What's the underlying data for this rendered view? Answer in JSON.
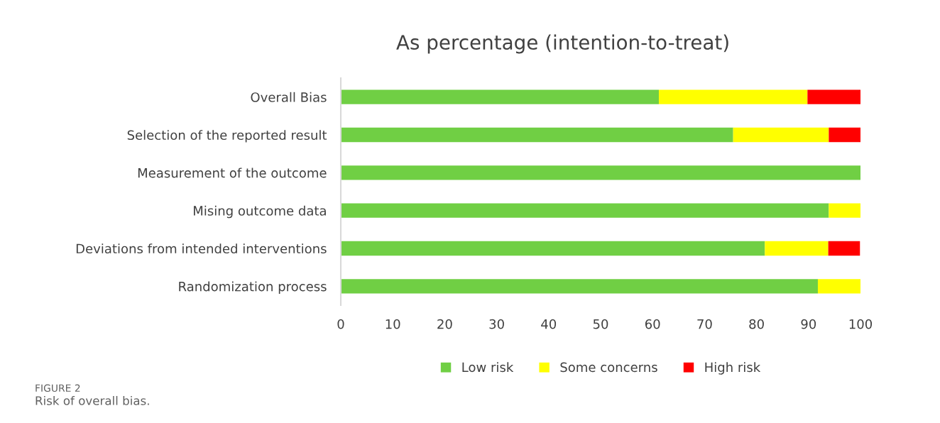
{
  "chart_data": {
    "type": "bar",
    "orientation": "horizontal",
    "stacked": true,
    "title": "As percentage (intention-to-treat)",
    "categories": [
      "Overall Bias",
      "Selection of the reported result",
      "Measurement of the outcome",
      "Mising outcome data",
      "Deviations from intended interventions",
      "Randomization process"
    ],
    "series": [
      {
        "name": "Low risk",
        "color": "#70cf44",
        "values": [
          61.2,
          75.5,
          100,
          93.9,
          81.6,
          91.8
        ]
      },
      {
        "name": "Some concerns",
        "color": "#ffff00",
        "values": [
          28.6,
          18.4,
          0,
          6.1,
          12.2,
          8.2
        ]
      },
      {
        "name": "High risk",
        "color": "#ff0000",
        "values": [
          10.2,
          6.1,
          0,
          0,
          6.1,
          0
        ]
      }
    ],
    "xlim": [
      0,
      100
    ],
    "xticks": [
      0,
      10,
      20,
      30,
      40,
      50,
      60,
      70,
      80,
      90,
      100
    ],
    "grid": false,
    "legend": "bottom",
    "annotations": [
      "FIGURE 2",
      "Risk of overall bias."
    ]
  }
}
